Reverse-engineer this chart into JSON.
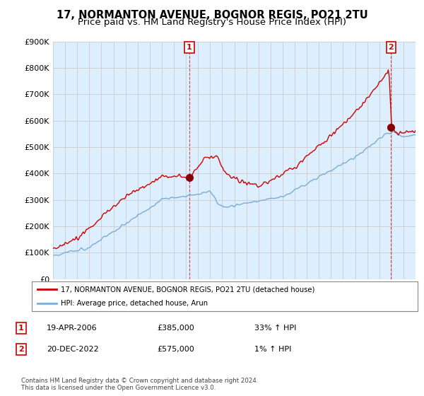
{
  "title": "17, NORMANTON AVENUE, BOGNOR REGIS, PO21 2TU",
  "subtitle": "Price paid vs. HM Land Registry's House Price Index (HPI)",
  "ylim": [
    0,
    900000
  ],
  "yticks": [
    0,
    100000,
    200000,
    300000,
    400000,
    500000,
    600000,
    700000,
    800000,
    900000
  ],
  "ytick_labels": [
    "£0",
    "£100K",
    "£200K",
    "£300K",
    "£400K",
    "£500K",
    "£600K",
    "£700K",
    "£800K",
    "£900K"
  ],
  "hpi_color": "#7aadd4",
  "price_color": "#cc0000",
  "marker_color": "#880000",
  "annotation_color": "#cc0000",
  "chart_bg": "#ddeeff",
  "sale1_date": 2006.28,
  "sale1_price": 385000,
  "sale2_date": 2022.97,
  "sale2_price": 575000,
  "legend_line1": "17, NORMANTON AVENUE, BOGNOR REGIS, PO21 2TU (detached house)",
  "legend_line2": "HPI: Average price, detached house, Arun",
  "table_row1": [
    "1",
    "19-APR-2006",
    "£385,000",
    "33% ↑ HPI"
  ],
  "table_row2": [
    "2",
    "20-DEC-2022",
    "£575,000",
    "1% ↑ HPI"
  ],
  "footer": "Contains HM Land Registry data © Crown copyright and database right 2024.\nThis data is licensed under the Open Government Licence v3.0.",
  "bg_color": "#ffffff",
  "grid_color": "#cccccc",
  "title_fontsize": 10.5,
  "subtitle_fontsize": 9.5,
  "tick_fontsize": 8
}
